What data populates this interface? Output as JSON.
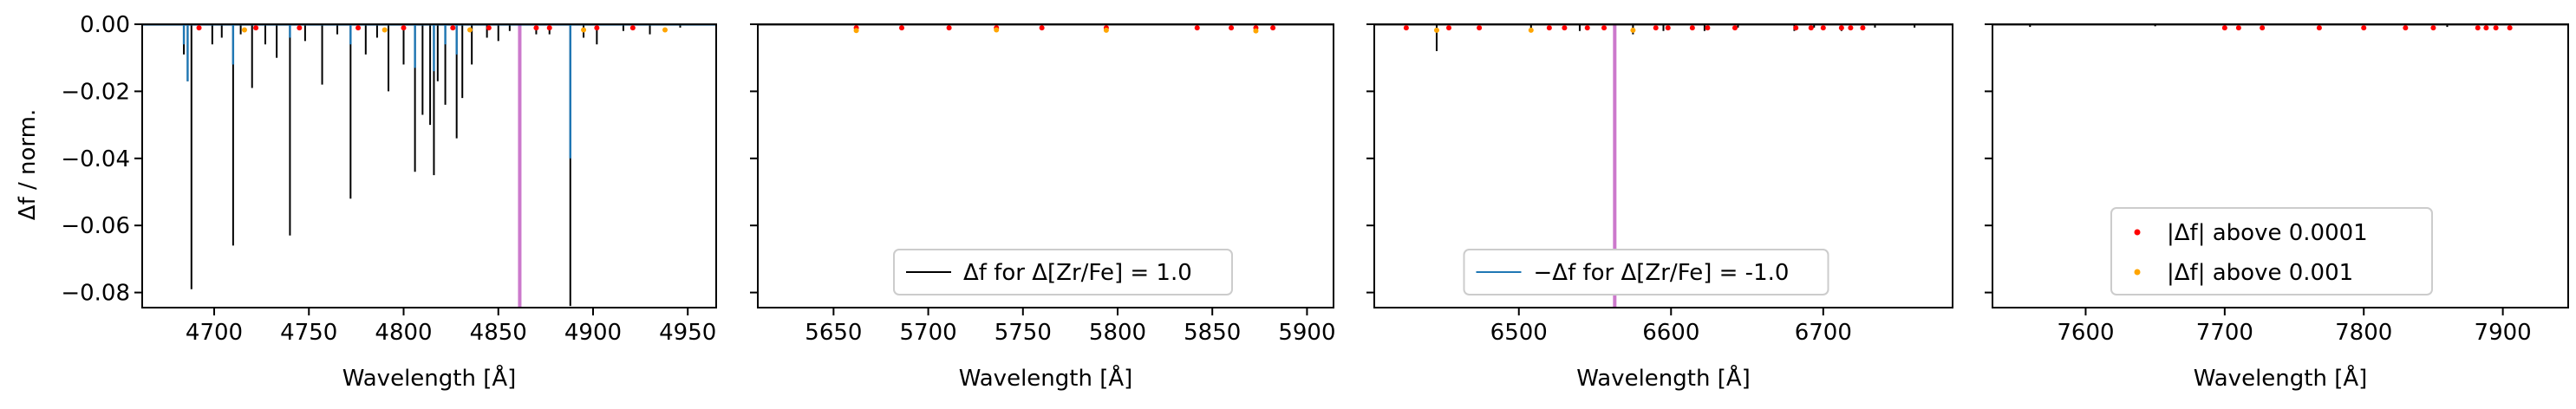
{
  "figure": {
    "ylabel": "Δf / norm.",
    "xlabel": "Wavelength [Å]"
  },
  "chart_data": [
    {
      "type": "line",
      "xlabel": "Wavelength [Å]",
      "ylabel": "Δf / norm.",
      "xlim": [
        4662,
        4965
      ],
      "ylim": [
        -0.0845,
        0.0
      ],
      "xticks": [
        4700,
        4750,
        4800,
        4850,
        4900,
        4950
      ],
      "yticks": [
        0.0,
        -0.02,
        -0.04,
        -0.06,
        -0.08
      ],
      "ytick_labels": [
        "0.00",
        "−0.02",
        "−0.04",
        "−0.06",
        "−0.08"
      ],
      "mask_lines": [
        4861.3
      ],
      "series": [
        {
          "role": "delta_plus",
          "color": "#000000",
          "x": [
            4684,
            4686,
            4688,
            4699,
            4704,
            4710,
            4714,
            4720,
            4727,
            4733,
            4740,
            4748,
            4757,
            4765,
            4772,
            4780,
            4786,
            4792,
            4800,
            4806,
            4810,
            4814,
            4816,
            4818,
            4822,
            4828,
            4831,
            4836,
            4844,
            4850,
            4856,
            4870,
            4877,
            4888,
            4895,
            4902,
            4916,
            4930,
            4946
          ],
          "y": [
            -0.009,
            -0.017,
            -0.079,
            -0.006,
            -0.004,
            -0.066,
            -0.003,
            -0.019,
            -0.006,
            -0.01,
            -0.063,
            -0.005,
            -0.018,
            -0.003,
            -0.052,
            -0.009,
            -0.004,
            -0.02,
            -0.012,
            -0.044,
            -0.027,
            -0.03,
            -0.045,
            -0.017,
            -0.024,
            -0.034,
            -0.022,
            -0.012,
            -0.004,
            -0.005,
            -0.002,
            -0.003,
            -0.003,
            -0.084,
            -0.004,
            -0.006,
            -0.002,
            -0.003,
            -0.001
          ]
        },
        {
          "role": "delta_minus",
          "color": "#1f77b4",
          "x": [
            4684,
            4686,
            4710,
            4740,
            4772,
            4806,
            4816,
            4822,
            4828,
            4888
          ],
          "y": [
            -0.006,
            -0.017,
            -0.012,
            -0.004,
            -0.006,
            -0.013,
            -0.014,
            -0.006,
            -0.009,
            -0.04
          ]
        },
        {
          "role": "above_1e-4",
          "color": "#ff0000",
          "x": [
            4692,
            4722,
            4745,
            4776,
            4800,
            4826,
            4845,
            4870,
            4877,
            4902,
            4921
          ],
          "y": [
            -0.0003,
            -0.0003,
            -0.0003,
            -0.0003,
            -0.0003,
            -0.0003,
            -0.0003,
            -0.0003,
            -0.0003,
            -0.0003,
            -0.0003
          ]
        },
        {
          "role": "above_1e-3",
          "color": "#ffa500",
          "x": [
            4716,
            4790,
            4835,
            4895,
            4938
          ],
          "y": [
            -0.0009,
            -0.0009,
            -0.0009,
            -0.0009,
            -0.0009
          ]
        }
      ]
    },
    {
      "type": "line",
      "xlabel": "Wavelength [Å]",
      "ylabel": "",
      "xlim": [
        5610,
        5914
      ],
      "ylim": [
        -0.0845,
        0.0
      ],
      "xticks": [
        5650,
        5700,
        5750,
        5800,
        5850,
        5900
      ],
      "mask_lines": [],
      "legend": {
        "text": "Δf for Δ[Zr/Fe] = 1.0",
        "color": "#000000",
        "position": "lower center"
      },
      "series": [
        {
          "role": "delta_plus",
          "color": "#000000",
          "x": [
            5662,
            5686,
            5711,
            5736,
            5760,
            5794,
            5842,
            5860,
            5873,
            5882
          ],
          "y": [
            -0.0015,
            -0.0012,
            -0.001,
            -0.001,
            -0.0008,
            -0.0012,
            -0.0014,
            -0.0009,
            -0.0018,
            -0.0009
          ]
        },
        {
          "role": "above_1e-4",
          "color": "#ff0000",
          "x": [
            5662,
            5686,
            5711,
            5736,
            5760,
            5794,
            5842,
            5860,
            5873,
            5882
          ],
          "y": [
            -0.0003,
            -0.0003,
            -0.0003,
            -0.0003,
            -0.0003,
            -0.0003,
            -0.0003,
            -0.0003,
            -0.0003,
            -0.0003
          ]
        },
        {
          "role": "above_1e-3",
          "color": "#ffa500",
          "x": [
            5662,
            5736,
            5794,
            5873
          ],
          "y": [
            -0.0011,
            -0.0009,
            -0.001,
            -0.0012
          ]
        }
      ]
    },
    {
      "type": "line",
      "xlabel": "Wavelength [Å]",
      "ylabel": "",
      "xlim": [
        6405,
        6785
      ],
      "ylim": [
        -0.0845,
        0.0
      ],
      "xticks": [
        6500,
        6600,
        6700
      ],
      "mask_lines": [
        6563
      ],
      "legend": {
        "text": "−Δf for Δ[Zr/Fe] = -1.0",
        "color": "#1f77b4",
        "position": "lower center"
      },
      "series": [
        {
          "role": "delta_plus",
          "color": "#000000",
          "x": [
            6446,
            6508,
            6540,
            6575,
            6595,
            6622,
            6644,
            6681,
            6694,
            6712,
            6734,
            6760
          ],
          "y": [
            -0.008,
            -0.002,
            -0.002,
            -0.003,
            -0.002,
            -0.002,
            -0.001,
            -0.002,
            -0.001,
            -0.002,
            -0.001,
            -0.001
          ]
        },
        {
          "role": "above_1e-4",
          "color": "#ff0000",
          "x": [
            6426,
            6454,
            6474,
            6520,
            6530,
            6545,
            6556,
            6590,
            6598,
            6614,
            6624,
            6642,
            6682,
            6692,
            6700,
            6712,
            6718,
            6726
          ],
          "y": [
            -0.0003,
            -0.0003,
            -0.0003,
            -0.0003,
            -0.0003,
            -0.0003,
            -0.0003,
            -0.0003,
            -0.0003,
            -0.0003,
            -0.0003,
            -0.0003,
            -0.0003,
            -0.0003,
            -0.0003,
            -0.0003,
            -0.0003,
            -0.0003
          ]
        },
        {
          "role": "above_1e-3",
          "color": "#ffa500",
          "x": [
            6446,
            6508,
            6575
          ],
          "y": [
            -0.001,
            -0.001,
            -0.001
          ]
        }
      ]
    },
    {
      "type": "line",
      "xlabel": "Wavelength [Å]",
      "ylabel": "",
      "xlim": [
        7533,
        7947
      ],
      "ylim": [
        -0.0845,
        0.0
      ],
      "xticks": [
        7600,
        7700,
        7800,
        7900
      ],
      "mask_lines": [],
      "legend": {
        "entries": [
          {
            "text": "|Δf| above 0.0001",
            "color": "#ff0000"
          },
          {
            "text": "|Δf| above 0.001",
            "color": "#ffa500"
          }
        ],
        "position": "lower center"
      },
      "series": [
        {
          "role": "delta_plus",
          "color": "#000000",
          "x": [
            7560,
            7650,
            7700,
            7768,
            7830,
            7860,
            7888,
            7905
          ],
          "y": [
            -0.0008,
            -0.0006,
            -0.0007,
            -0.0009,
            -0.0006,
            -0.0008,
            -0.001,
            -0.0009
          ]
        },
        {
          "role": "above_1e-4",
          "color": "#ff0000",
          "x": [
            7700,
            7710,
            7727,
            7768,
            7800,
            7830,
            7850,
            7882,
            7888,
            7895,
            7905
          ],
          "y": [
            -0.0003,
            -0.0003,
            -0.0003,
            -0.0003,
            -0.0003,
            -0.0003,
            -0.0003,
            -0.0003,
            -0.0003,
            -0.0003,
            -0.0003
          ]
        }
      ]
    }
  ]
}
